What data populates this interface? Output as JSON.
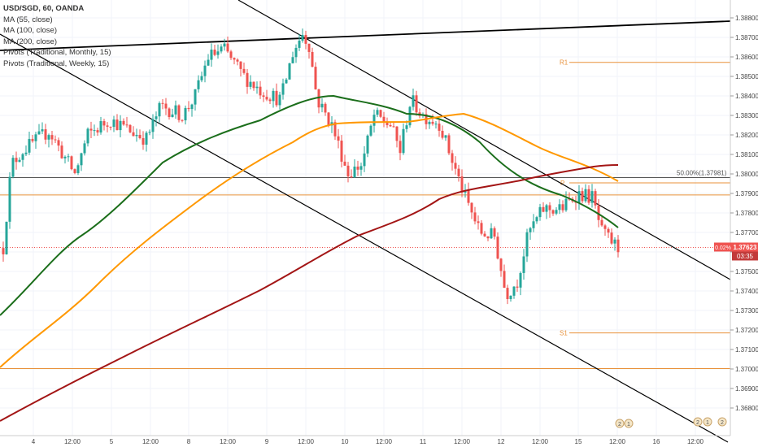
{
  "legend": {
    "symbol": "USD/SGD, 60, OANDA",
    "studies": [
      "MA (55, close)",
      "MA (100, close)",
      "MA (200, close)",
      "Pivots (Traditional, Monthly, 15)",
      "Pivots (Traditional, Weekly, 15)"
    ]
  },
  "chart_data": {
    "type": "candlestick",
    "symbol": "USD/SGD",
    "interval": "60",
    "source": "OANDA",
    "y_ticks": [
      "1.36800",
      "1.36900",
      "1.37000",
      "1.37100",
      "1.37200",
      "1.37300",
      "1.37400",
      "1.37500",
      "1.37600",
      "1.37700",
      "1.37800",
      "1.37900",
      "1.38000",
      "1.38100",
      "1.38200",
      "1.38300",
      "1.38400",
      "1.38500",
      "1.38600",
      "1.38700",
      "1.38800"
    ],
    "ylim": [
      1.3675,
      1.3893
    ],
    "x_ticks": [
      "4",
      "12:00",
      "5",
      "12:00",
      "8",
      "12:00",
      "9",
      "12:00",
      "10",
      "12:00",
      "11",
      "12:00",
      "12",
      "12:00",
      "15",
      "12:00",
      "16",
      "12:00"
    ],
    "price_badge": {
      "change": "0.02%",
      "price": "1.37623",
      "countdown": "03:35"
    },
    "pivot_labels": {
      "r1": "R1",
      "p": "P",
      "s1": "S1"
    },
    "fib_label": "50.00%(1.37981)",
    "event_markers": [
      "2",
      "1",
      "2",
      "1",
      "2"
    ],
    "colors": {
      "up": "#26a69a",
      "down": "#ef5350",
      "ma55": "#1b6e1b",
      "ma100": "#ff9800",
      "ma200": "#a31515",
      "pivot": "#e8913a",
      "price_line": "#ef5350",
      "trendline": "#000000"
    }
  }
}
